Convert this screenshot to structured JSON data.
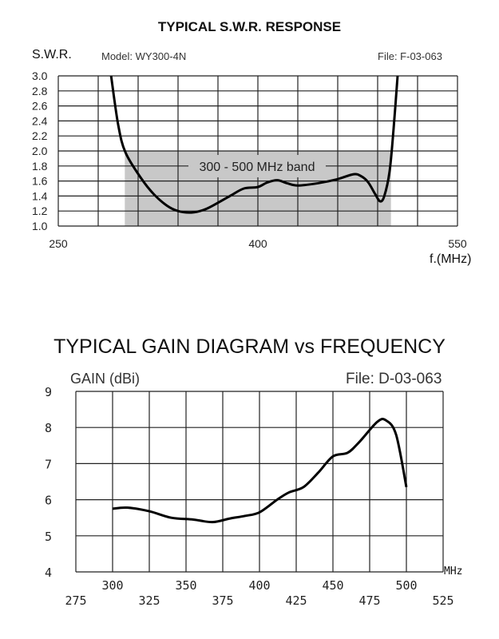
{
  "chart_data": [
    {
      "type": "line",
      "title": "TYPICAL S.W.R. RESPONSE",
      "ylabel": "S.W.R.",
      "model": "Model:  WY300-4N",
      "file": "File:  F-03-063",
      "xlabel": "f.(MHz)",
      "xlim": [
        250,
        550
      ],
      "ylim": [
        1.0,
        3.0
      ],
      "xticks": [
        "250",
        "400",
        "550"
      ],
      "yticks": [
        "1.0",
        "1.2",
        "1.4",
        "1.6",
        "1.8",
        "2.0",
        "2.2",
        "2.4",
        "2.6",
        "2.8",
        "3.0"
      ],
      "band": {
        "label": "300 - 500 MHz band",
        "from": 300,
        "to": 500,
        "max_swr": 2.0,
        "color": "#c8c8c8"
      },
      "grid": true,
      "series": [
        {
          "name": "SWR",
          "x": [
            289.7,
            295,
            300.5,
            312.5,
            322,
            331.8,
            340,
            350,
            360,
            370,
            380,
            389.5,
            400,
            407,
            414.6,
            422,
            430,
            445,
            459,
            472,
            478,
            483,
            488,
            491.8,
            495,
            499,
            502,
            505
          ],
          "y": [
            3.0,
            2.35,
            1.98,
            1.63,
            1.42,
            1.27,
            1.2,
            1.18,
            1.22,
            1.31,
            1.41,
            1.5,
            1.52,
            1.58,
            1.61,
            1.57,
            1.54,
            1.57,
            1.62,
            1.69,
            1.66,
            1.58,
            1.43,
            1.33,
            1.4,
            1.73,
            2.3,
            3.0
          ]
        }
      ]
    },
    {
      "type": "line",
      "title": "TYPICAL GAIN DIAGRAM vs FREQUENCY",
      "ylabel": "GAIN (dBi)",
      "file": "File:  D-03-063",
      "xlabel": "MHz",
      "xlim": [
        275,
        525
      ],
      "ylim": [
        4,
        9
      ],
      "xticks_upper": [
        "300",
        "350",
        "400",
        "450",
        "500"
      ],
      "xticks_lower": [
        "275",
        "325",
        "375",
        "425",
        "475",
        "525"
      ],
      "yticks": [
        "4",
        "5",
        "6",
        "7",
        "8",
        "9"
      ],
      "grid": true,
      "series": [
        {
          "name": "Gain",
          "x": [
            300,
            310,
            325,
            340,
            355,
            368,
            380,
            390,
            400,
            412,
            420,
            430,
            440,
            450,
            460,
            468,
            480,
            486,
            493,
            500
          ],
          "y": [
            5.75,
            5.78,
            5.68,
            5.5,
            5.45,
            5.38,
            5.48,
            5.55,
            5.65,
            6.0,
            6.2,
            6.35,
            6.75,
            7.2,
            7.3,
            7.6,
            8.15,
            8.2,
            7.8,
            6.35
          ]
        }
      ]
    }
  ]
}
